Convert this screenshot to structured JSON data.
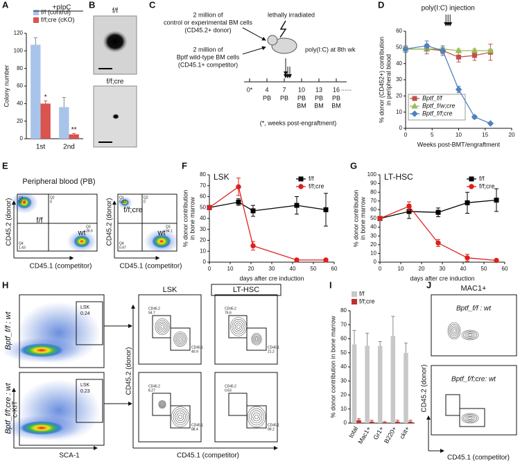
{
  "letters": [
    "A",
    "B",
    "C",
    "D",
    "E",
    "F",
    "G",
    "H",
    "I",
    "J"
  ],
  "chart_data": [
    {
      "type": "bar",
      "title": "+pIpC",
      "categories": [
        "1st",
        "2nd"
      ],
      "y_label": [
        "Colony number"
      ],
      "ylim": [
        0,
        120
      ],
      "yticks": [
        0,
        20,
        40,
        60,
        80,
        100,
        120
      ],
      "legend": "top",
      "series": [
        {
          "name": "f/f (control)",
          "color": "#a9c4ea",
          "values": [
            107,
            36
          ],
          "errors": [
            8,
            11
          ]
        },
        {
          "name": "f/f;cre (cKO)",
          "color": "#d9534f",
          "values": [
            40,
            5
          ],
          "errors": [
            3,
            1
          ]
        }
      ],
      "annotations": [
        "*",
        "**"
      ]
    },
    {
      "type": "line",
      "x_label": "Weeks post-BMT/engraftment",
      "y_label": [
        "% donor (CD452+) contribution",
        "in peripheral blood"
      ],
      "annotation": "poly(I:C) injection",
      "x": [
        0,
        4,
        7,
        10,
        13,
        16
      ],
      "xlim": [
        0,
        20
      ],
      "xticks": [
        0,
        5,
        10,
        15,
        20
      ],
      "ylim": [
        0,
        60
      ],
      "yticks": [
        0,
        10,
        20,
        30,
        40,
        50,
        60
      ],
      "legend": "lower left",
      "series": [
        {
          "name": "Bptf_f/f",
          "color": "#c0504d",
          "marker": "square",
          "values": [
            49,
            49,
            48,
            44,
            45,
            47
          ],
          "errors": [
            2,
            3,
            2,
            3,
            3,
            5
          ]
        },
        {
          "name": "Bptf_f/w;cre",
          "color": "#9bbb59",
          "marker": "triangle",
          "values": [
            49,
            49,
            49,
            48,
            48,
            48
          ],
          "errors": [
            1,
            1,
            1,
            1,
            1,
            1
          ]
        },
        {
          "name": "Bptf_f/f;cre",
          "color": "#4f81bd",
          "marker": "diamond",
          "values": [
            49,
            51,
            48,
            24,
            7,
            3
          ],
          "errors": [
            2,
            3,
            3,
            2,
            1,
            0.5
          ]
        }
      ]
    },
    {
      "type": "line",
      "title": "LSK",
      "x_label": "days after cre induction",
      "y_label": [
        "% donor contribution",
        "in bone marrow"
      ],
      "x": [
        0,
        14,
        21,
        42,
        56
      ],
      "xlim": [
        0,
        60
      ],
      "xticks": [
        0,
        10,
        20,
        30,
        40,
        50,
        60
      ],
      "ylim": [
        0,
        80
      ],
      "yticks": [
        0,
        10,
        20,
        30,
        40,
        50,
        60,
        70,
        80
      ],
      "legend": "upper right",
      "series": [
        {
          "name": "f/f",
          "color": "#000000",
          "marker": "square",
          "values": [
            50,
            55,
            47,
            52,
            48
          ],
          "errors": [
            0,
            3,
            5,
            8,
            15
          ]
        },
        {
          "name": "f/f;cre",
          "color": "#e0201b",
          "marker": "circle",
          "values": [
            50,
            69,
            15,
            2,
            2
          ],
          "errors": [
            0,
            8,
            4,
            1,
            1
          ]
        }
      ]
    },
    {
      "type": "line",
      "title": "LT-HSC",
      "x_label": "days after cre induction",
      "y_label": [
        "% donor contribution",
        "in bone marrow"
      ],
      "x": [
        0,
        14,
        28,
        42,
        56
      ],
      "xlim": [
        0,
        60
      ],
      "xticks": [
        0,
        10,
        20,
        30,
        40,
        50,
        60
      ],
      "ylim": [
        0,
        100
      ],
      "yticks": [
        0,
        10,
        20,
        30,
        40,
        50,
        60,
        70,
        80,
        90,
        100
      ],
      "legend": "upper right",
      "series": [
        {
          "name": "f/f",
          "color": "#000000",
          "marker": "square",
          "values": [
            50,
            58,
            57,
            68,
            71
          ],
          "errors": [
            0,
            8,
            5,
            12,
            13
          ]
        },
        {
          "name": "f/f;cre",
          "color": "#e0201b",
          "marker": "circle",
          "values": [
            50,
            64,
            22,
            5,
            2
          ],
          "errors": [
            0,
            5,
            4,
            4,
            1
          ]
        }
      ]
    },
    {
      "type": "bar",
      "categories": [
        "total",
        "Mac1+",
        "Gr1+",
        "B220+",
        "ckit+"
      ],
      "y_label": [
        "% donor contribution in bone marrow"
      ],
      "ylim": [
        0,
        80
      ],
      "yticks": [
        0,
        10,
        20,
        30,
        40,
        50,
        60,
        70,
        80
      ],
      "legend": "upper left",
      "series": [
        {
          "name": "f/f",
          "color": "#c8c8c8",
          "values": [
            56,
            55,
            55,
            62,
            50
          ],
          "errors": [
            10,
            9,
            3,
            14,
            7
          ]
        },
        {
          "name": "f/f;cre",
          "color": "#c0302b",
          "values": [
            2,
            1,
            0.5,
            1,
            1
          ],
          "errors": [
            1,
            1,
            0.5,
            1,
            1
          ]
        }
      ]
    }
  ],
  "B": {
    "top": "f/f",
    "bottom": "f/f;cre"
  },
  "C": {
    "donor": [
      "2 million of",
      "control or experimental BM cells",
      "(CD45.2+ donor)"
    ],
    "competitor": [
      "2 million of",
      "Bptf wild-type BM cells",
      "(CD45.1+ competitor)"
    ],
    "irradiation": "lethally irradiated",
    "treatment": "poly(I:C) at 8th wk",
    "timeline": [
      {
        "t": "0*"
      },
      {
        "t": "4",
        "s": [
          "PB"
        ]
      },
      {
        "t": "7",
        "s": [
          "PB"
        ]
      },
      {
        "t": "10",
        "s": [
          "PB",
          "BM"
        ]
      },
      {
        "t": "13",
        "s": [
          "PB",
          "BM"
        ]
      },
      {
        "t": "16",
        "s": [
          "PB",
          "BM"
        ]
      }
    ],
    "ellipsis": "......",
    "note": "(*, weeks post-engraftment)"
  },
  "E": {
    "title": "Peripheral blood (PB)",
    "plots": [
      {
        "donor": "f/f",
        "competitor": "wt",
        "quads": [
          {
            "q": "Q1",
            "v": "62.0"
          },
          {
            "q": "Q2",
            "v": "0"
          },
          {
            "q": "Q4",
            "v": "1.43"
          },
          {
            "q": "Q3",
            "v": "36.6"
          }
        ]
      },
      {
        "donor": "f/f;cre",
        "competitor": "wt",
        "quads": [
          {
            "q": "Q1",
            "v": "5.47"
          },
          {
            "q": "Q2",
            "v": "0"
          },
          {
            "q": "Q4",
            "v": "0.47"
          },
          {
            "q": "Q3",
            "v": "94.1"
          }
        ]
      }
    ],
    "y_label": "CD45.2 (donor)",
    "x_label": "CD45.1 (competitor)"
  },
  "H": {
    "columns": [
      "LSK",
      "LT-HSC"
    ],
    "rows": [
      "Bptf_f/f : wt",
      "Bptf_f/f;cre : wt"
    ],
    "gate": "LSK",
    "gate_values": [
      "0.24",
      "0.23"
    ],
    "left_y": "c-KIT",
    "left_x": "SCA-1",
    "gates": [
      [
        {
          "n": "CD45.2",
          "v": "54.7"
        },
        {
          "n": "CD45.1",
          "v": "40.9"
        }
      ],
      [
        {
          "n": "CD45.2",
          "v": "76.6"
        },
        {
          "n": "CD45.1",
          "v": "21.2"
        }
      ],
      [
        {
          "n": "CD45.2",
          "v": "8.27"
        },
        {
          "n": "CD45.1",
          "v": "88.4"
        }
      ],
      [
        {
          "n": "CD45.2",
          "v": "0.63"
        },
        {
          "n": "CD45.1",
          "v": "99.2"
        }
      ]
    ],
    "y_label": "CD45.2 (donor)",
    "x_label": "CD45.1 (competitor)"
  },
  "J": {
    "title": "MAC1+",
    "rows": [
      "Bptf_f/f  : wt",
      "Bptf_f/f;cre: wt"
    ],
    "y_label": "CD45.2 (donor)",
    "x_label": "CD45.1 (competitor)"
  }
}
